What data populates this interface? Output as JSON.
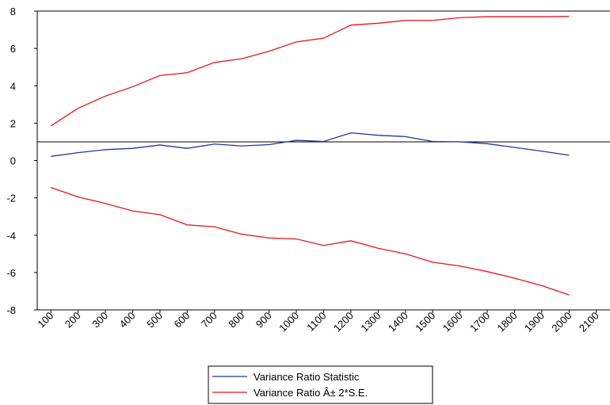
{
  "chart_data": {
    "type": "line",
    "x": [
      100,
      200,
      300,
      400,
      500,
      600,
      700,
      800,
      900,
      1000,
      1100,
      1200,
      1300,
      1400,
      1500,
      1600,
      1700,
      1800,
      1900,
      2000
    ],
    "series": [
      {
        "name": "Variance Ratio Statistic",
        "color": "#1f3a93",
        "values": [
          0.22,
          0.42,
          0.58,
          0.65,
          0.83,
          0.65,
          0.88,
          0.78,
          0.85,
          1.08,
          1.02,
          1.48,
          1.35,
          1.28,
          1.02,
          1.0,
          0.9,
          0.7,
          0.5,
          0.28
        ]
      },
      {
        "name": "Variance Ratio Â± 2*S.E.",
        "color": "#e8141c",
        "values": [
          1.85,
          2.8,
          3.45,
          3.95,
          4.55,
          4.7,
          5.25,
          5.45,
          5.85,
          6.35,
          6.55,
          7.25,
          7.35,
          7.5,
          7.5,
          7.65,
          7.7,
          7.7,
          7.7,
          7.72
        ],
        "lower": [
          -1.45,
          -1.95,
          -2.3,
          -2.7,
          -2.9,
          -3.45,
          -3.55,
          -3.95,
          -4.15,
          -4.2,
          -4.55,
          -4.3,
          -4.7,
          -5.0,
          -5.45,
          -5.65,
          -5.95,
          -6.3,
          -6.7,
          -7.2
        ]
      }
    ],
    "reference_line": 1,
    "xlim": [
      50,
      2150
    ],
    "xticks": [
      100,
      200,
      300,
      400,
      500,
      600,
      700,
      800,
      900,
      1000,
      1100,
      1200,
      1300,
      1400,
      1500,
      1600,
      1700,
      1800,
      1900,
      2000,
      2100
    ],
    "ylim": [
      -8,
      8
    ],
    "yticks": [
      -8,
      -6,
      -4,
      -2,
      0,
      2,
      4,
      6,
      8
    ]
  }
}
